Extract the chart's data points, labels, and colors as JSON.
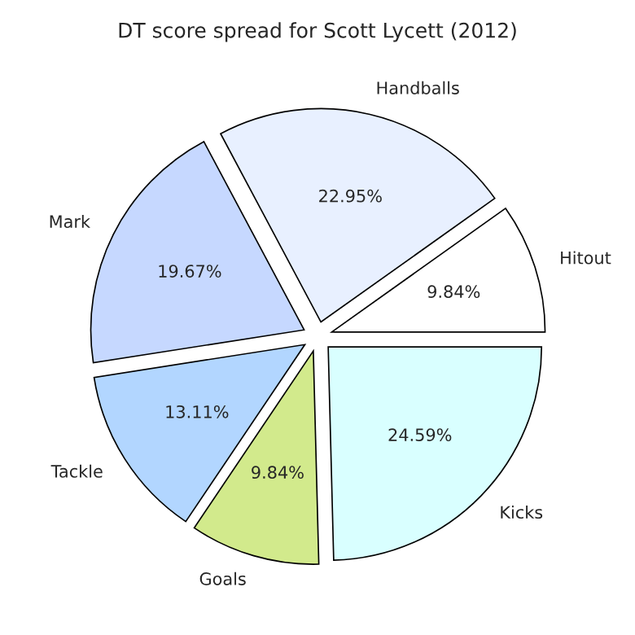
{
  "chart_data": {
    "type": "pie",
    "title": "DT score spread for Scott Lycett (2012)",
    "categories": [
      "Hitout",
      "Handballs",
      "Mark",
      "Tackle",
      "Goals",
      "Kicks"
    ],
    "values": [
      9.84,
      22.95,
      19.67,
      13.11,
      9.84,
      24.59
    ],
    "value_labels": [
      "9.84%",
      "22.95%",
      "19.67%",
      "13.11%",
      "9.84%",
      "24.59%"
    ],
    "colors": [
      "#ffffff",
      "#e8f0ff",
      "#c6d8ff",
      "#b2d6ff",
      "#d2ea8c",
      "#d9ffff"
    ]
  }
}
